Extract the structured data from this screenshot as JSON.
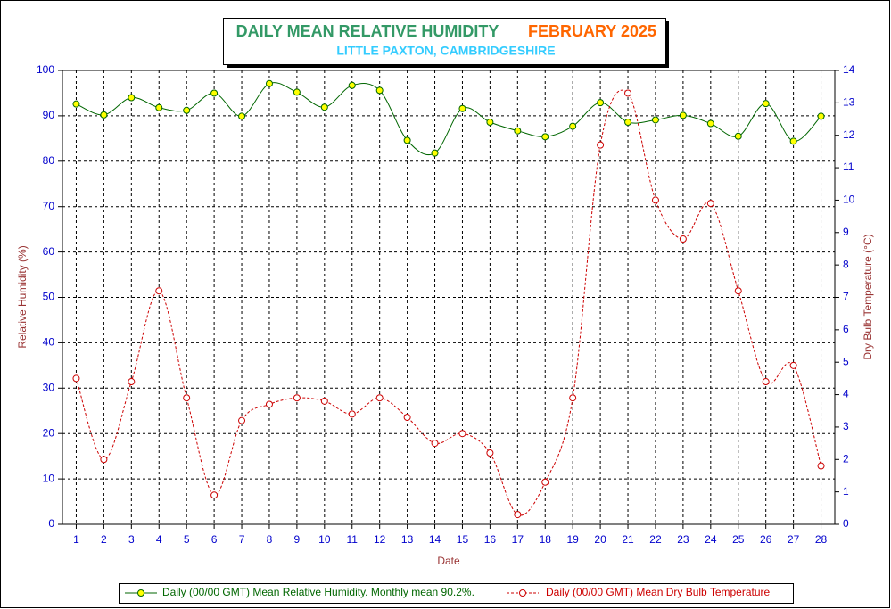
{
  "chart_data": {
    "type": "line",
    "title": "DAILY MEAN RELATIVE HUMIDITY",
    "title_period": "FEBRUARY 2025",
    "subtitle": "LITTLE PAXTON, CAMBRIDGESHIRE",
    "x_label": "Date",
    "y_label": "Relative Humidity (%)",
    "y2_label": "Dry Bulb Temperature (°C)",
    "categories": [
      "1",
      "2",
      "3",
      "4",
      "5",
      "6",
      "7",
      "8",
      "9",
      "10",
      "11",
      "12",
      "13",
      "14",
      "15",
      "16",
      "17",
      "18",
      "19",
      "20",
      "21",
      "22",
      "23",
      "24",
      "25",
      "26",
      "27",
      "28"
    ],
    "ylim": [
      0,
      100
    ],
    "yticks": [
      0,
      10,
      20,
      30,
      40,
      50,
      60,
      70,
      80,
      90,
      100
    ],
    "y2lim": [
      0,
      14
    ],
    "y2ticks": [
      0,
      1,
      2,
      3,
      4,
      5,
      6,
      7,
      8,
      9,
      10,
      11,
      12,
      13,
      14
    ],
    "grid": true,
    "series": [
      {
        "name": "Daily (00/00 GMT) Mean Relative Humidity. Monthly mean 90.2%.",
        "color": "#006600",
        "marker_fill": "#ffff00",
        "values": [
          92.6,
          90.2,
          94.0,
          91.8,
          91.2,
          95.0,
          89.9,
          97.1,
          95.2,
          91.9,
          96.7,
          95.6,
          84.6,
          81.8,
          91.6,
          88.6,
          86.7,
          85.4,
          87.7,
          92.9,
          88.6,
          89.1,
          90.1,
          88.3,
          85.5,
          92.7,
          84.4,
          89.9
        ]
      },
      {
        "name": "Daily (00/00 GMT) Mean Dry Bulb Temperature",
        "color": "#cc0000",
        "marker_fill": "#ffffff",
        "axis": "y2",
        "dashed": true,
        "values": [
          4.5,
          2.0,
          4.4,
          7.2,
          3.9,
          0.9,
          3.2,
          3.7,
          3.9,
          3.8,
          3.4,
          3.9,
          3.3,
          2.5,
          2.8,
          2.2,
          0.3,
          1.3,
          3.9,
          11.7,
          13.3,
          10.0,
          8.8,
          9.9,
          7.2,
          4.4,
          4.9,
          1.8
        ]
      }
    ]
  }
}
